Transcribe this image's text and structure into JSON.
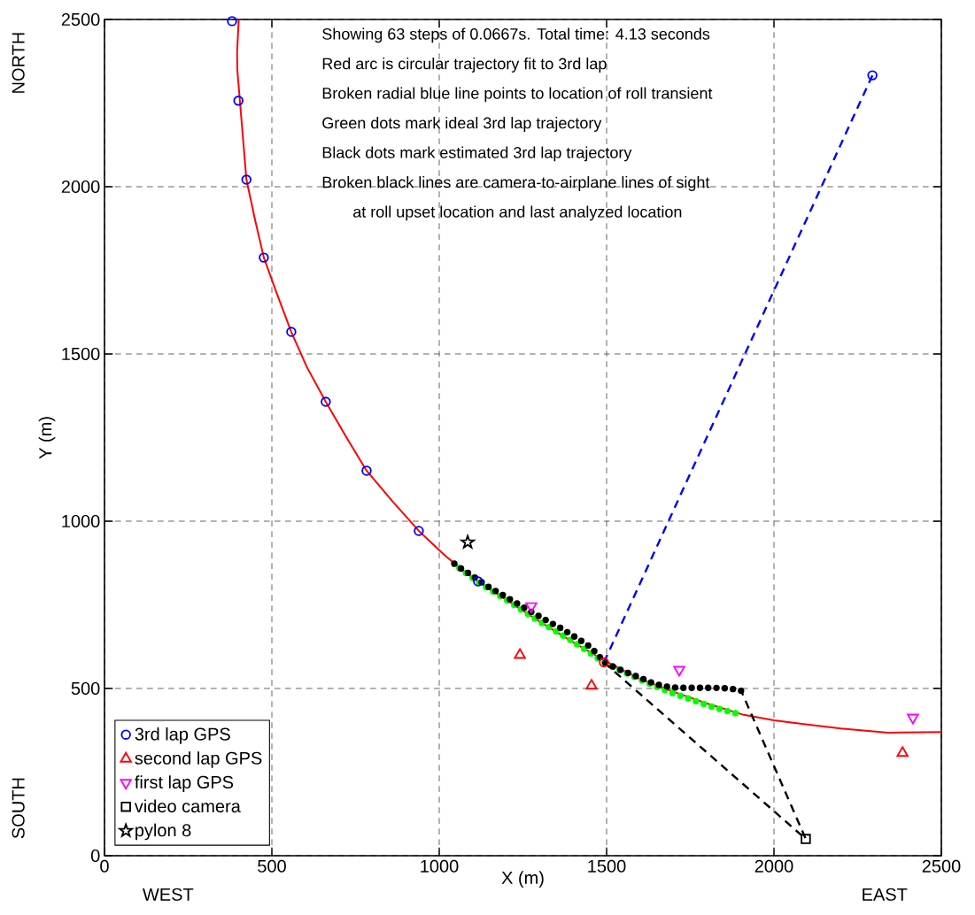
{
  "chart_data": {
    "type": "scatter",
    "xlabel": "X (m)",
    "ylabel": "Y (m)",
    "xlim": [
      0,
      2500
    ],
    "ylim": [
      0,
      2500
    ],
    "xticks": [
      0,
      500,
      1000,
      1500,
      2000,
      2500
    ],
    "yticks": [
      0,
      500,
      1000,
      1500,
      2000,
      2500
    ],
    "grid": true,
    "legend": "bottom left",
    "annotations": [
      "Showing 63 steps of 0.0667s.   Total time: 4.13 seconds",
      "Red arc is circular trajectory fit to 3rd lap",
      "Broken radial blue line points to location of roll transient",
      "Green dots mark ideal 3rd lap trajectory",
      "Black dots mark estimated 3rd lap trajectory",
      "Broken black lines are camera-to-airplane lines of sight",
      "at roll upset location and last analyzed location",
      "WEST",
      "EAST",
      "NORTH",
      "SOUTH"
    ],
    "series": [
      {
        "type": "line",
        "color": "#ff0000",
        "line_style": "solid",
        "x": [
          401,
          396,
          397,
          405,
          424,
          450,
          476,
          515,
          558,
          605,
          661,
          720,
          783,
          860,
          939,
          1020,
          1100,
          1200,
          1300,
          1400,
          1500,
          1600,
          1700,
          1800,
          1910,
          2000,
          2100,
          2200,
          2341,
          2500
        ],
        "values": [
          2500,
          2400,
          2347,
          2250,
          2021,
          1900,
          1788,
          1680,
          1566,
          1460,
          1357,
          1255,
          1151,
          1060,
          971,
          895,
          830,
          765,
          700,
          638,
          580,
          528,
          490,
          455,
          421,
          405,
          392,
          380,
          368,
          370
        ]
      },
      {
        "type": "line",
        "color": "#00ff00",
        "line_style": "dotted",
        "x": [
          1060,
          1120,
          1200,
          1300,
          1400,
          1492,
          1550,
          1600,
          1650,
          1700,
          1750,
          1800,
          1850,
          1905
        ],
        "values": [
          860,
          815,
          765,
          700,
          640,
          578,
          550,
          527,
          505,
          485,
          468,
          450,
          435,
          421
        ]
      },
      {
        "type": "line",
        "color": "#000000",
        "line_style": "dotted",
        "x": [
          1045,
          1070,
          1095,
          1120,
          1150,
          1180,
          1210,
          1240,
          1270,
          1300,
          1330,
          1360,
          1390,
          1420,
          1450,
          1475,
          1492,
          1520,
          1550,
          1580,
          1610,
          1640,
          1670,
          1700,
          1730,
          1760,
          1790,
          1820,
          1850,
          1880,
          1902
        ],
        "values": [
          873,
          855,
          840,
          822,
          802,
          785,
          767,
          750,
          732,
          715,
          698,
          682,
          664,
          645,
          625,
          600,
          578,
          565,
          552,
          540,
          528,
          515,
          507,
          503,
          502,
          502,
          502,
          502,
          501,
          498,
          493
        ]
      },
      {
        "type": "line",
        "color": "#0000ff",
        "line_style": "dashed",
        "x": [
          1492,
          2294
        ],
        "values": [
          578,
          2333
        ]
      },
      {
        "type": "scatter",
        "color": "#0000ff",
        "marker": "circle",
        "x": [
          2294
        ],
        "values": [
          2333
        ]
      },
      {
        "type": "line",
        "color": "#000000",
        "line_style": "dashed",
        "x": [
          1492,
          2095,
          1902
        ],
        "values": [
          578,
          50,
          493
        ]
      },
      {
        "type": "scatter",
        "color": "#ff0000",
        "marker": "circle",
        "x": [
          1492
        ],
        "values": [
          578
        ]
      },
      {
        "type": "scatter",
        "name": "3rd lap GPS",
        "color": "#0000ff",
        "marker": "circle",
        "x": [
          381,
          400,
          424,
          476,
          558,
          661,
          783,
          939,
          1116
        ],
        "values": [
          2495,
          2257,
          2021,
          1788,
          1566,
          1357,
          1151,
          971,
          820
        ]
      },
      {
        "type": "scatter",
        "name": "second lap GPS",
        "color": "#ff0000",
        "marker": "triangle",
        "x": [
          1241,
          1455,
          2384
        ],
        "values": [
          600,
          508,
          307
        ]
      },
      {
        "type": "scatter",
        "name": "first lap GPS",
        "color": "#ff00ff",
        "marker": "triangle-down",
        "x": [
          1275,
          1717,
          2415
        ],
        "values": [
          746,
          556,
          413
        ]
      },
      {
        "type": "scatter",
        "name": "video camera",
        "color": "#000000",
        "marker": "square",
        "x": [
          2095
        ],
        "values": [
          50
        ]
      },
      {
        "type": "scatter",
        "name": "pylon 8",
        "color": "#000000",
        "marker": "star",
        "x": [
          1085
        ],
        "values": [
          937
        ]
      }
    ]
  }
}
